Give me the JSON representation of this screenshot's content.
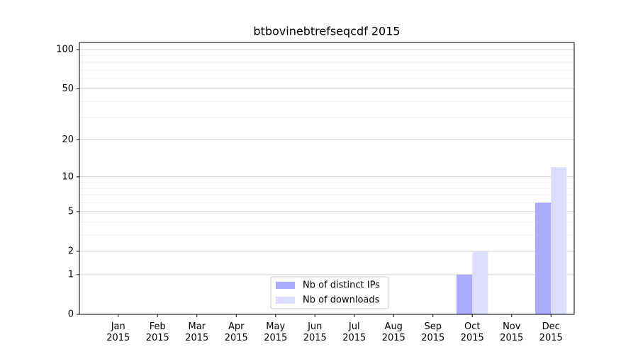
{
  "chart_data": {
    "type": "bar",
    "title": "btbovinebtrefseqcdf 2015",
    "categories": [
      "Jan 2015",
      "Feb 2015",
      "Mar 2015",
      "Apr 2015",
      "May 2015",
      "Jun 2015",
      "Jul 2015",
      "Aug 2015",
      "Sep 2015",
      "Oct 2015",
      "Nov 2015",
      "Dec 2015"
    ],
    "series": [
      {
        "name": "Nb of distinct IPs",
        "color": "#aaaaff",
        "values": [
          0,
          0,
          0,
          0,
          0,
          0,
          0,
          0,
          0,
          1,
          0,
          6
        ]
      },
      {
        "name": "Nb of downloads",
        "color": "#ddddff",
        "values": [
          0,
          0,
          0,
          0,
          0,
          0,
          0,
          0,
          0,
          2,
          0,
          12
        ]
      }
    ],
    "yscale": "log1p",
    "ylim": [
      0,
      113.5
    ],
    "yticks": [
      0,
      1,
      2,
      5,
      10,
      20,
      50,
      100
    ],
    "minor_yticks": [
      3,
      4,
      6,
      7,
      8,
      9,
      30,
      40,
      60,
      70,
      80,
      90
    ],
    "grid": true,
    "legend": "lower center"
  }
}
